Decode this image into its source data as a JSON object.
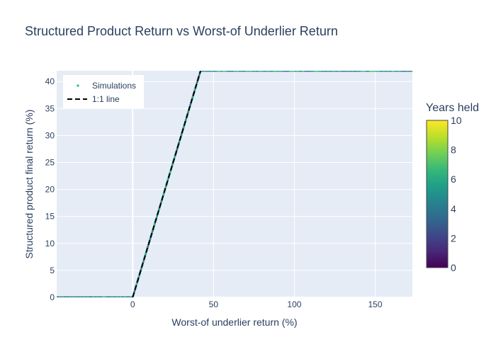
{
  "chart_data": {
    "type": "scatter",
    "title": "Structured Product Return vs Worst-of Underlier Return",
    "xlabel": "Worst-of underlier return (%)",
    "ylabel": "Structured product final return (%)",
    "xlim": [
      -47,
      173
    ],
    "ylim": [
      0,
      42
    ],
    "x_ticks": [
      0,
      50,
      100,
      150
    ],
    "y_ticks": [
      0,
      5,
      10,
      15,
      20,
      25,
      30,
      35,
      40
    ],
    "grid": true,
    "legend_position": "top-left",
    "series": [
      {
        "name": "Simulations",
        "kind": "scatter",
        "color_by": "Years held",
        "segments": [
          {
            "x": [
              -47,
              0
            ],
            "y": [
              0,
              0
            ]
          },
          {
            "x": [
              0,
              42
            ],
            "y": [
              0,
              42
            ]
          },
          {
            "x": [
              42,
              173
            ],
            "y": [
              42,
              42
            ]
          }
        ]
      },
      {
        "name": "1:1 line",
        "kind": "line",
        "dash": "dash",
        "color": "#000000",
        "x": [
          0,
          42
        ],
        "y": [
          0,
          42
        ]
      }
    ],
    "colorbar": {
      "title": "Years held",
      "range": [
        0,
        10
      ],
      "ticks": [
        0,
        2,
        4,
        6,
        8,
        10
      ],
      "colorscale": "viridis"
    }
  }
}
